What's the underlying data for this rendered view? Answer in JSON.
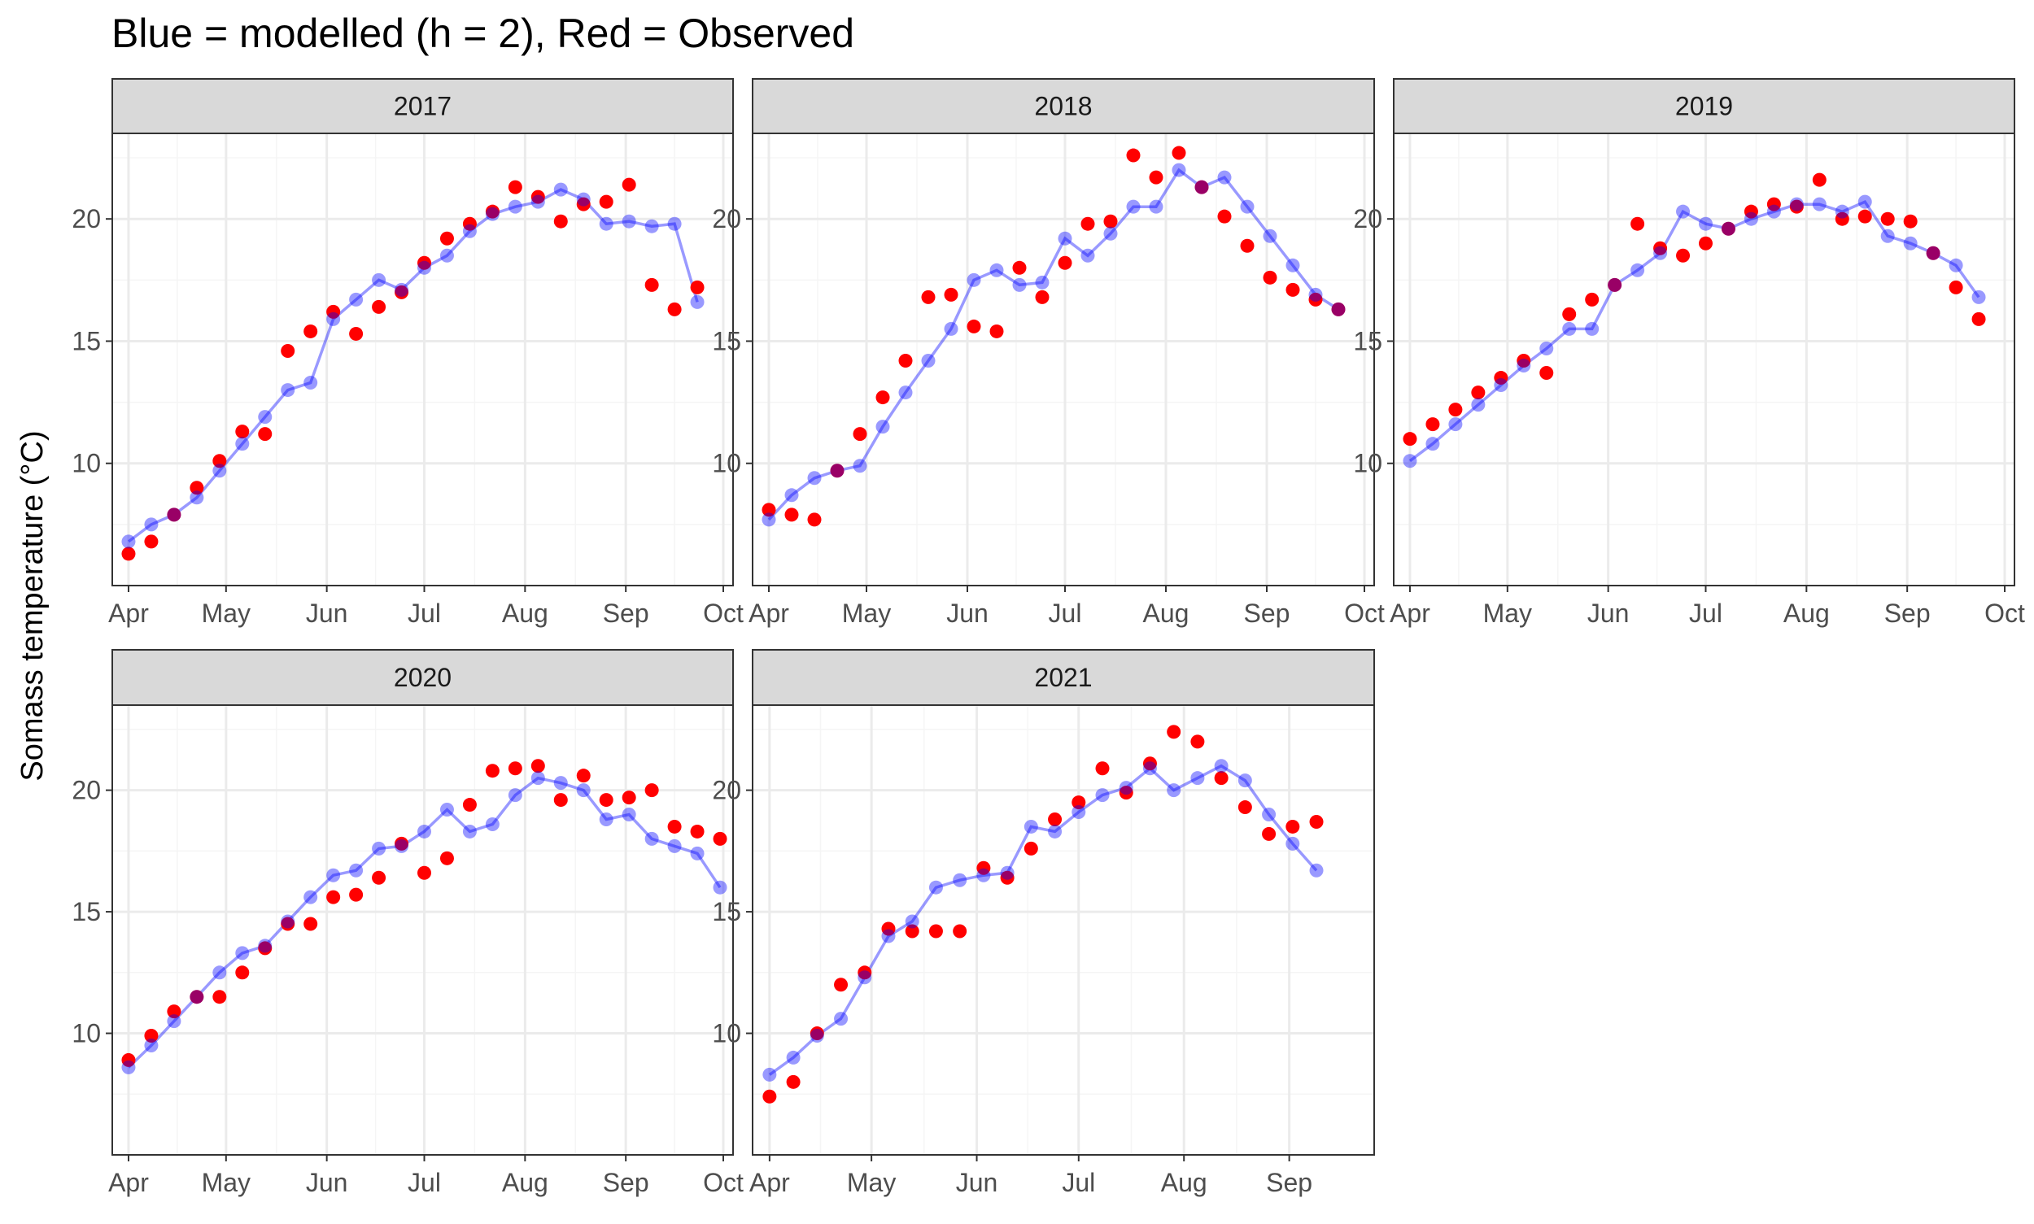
{
  "title": "Blue = modelled (h = 2), Red = Observed",
  "ylabel": "Somass temperature (°C)",
  "colors": {
    "modelled": "#0000ff",
    "observed": "#ff0000",
    "strip_bg": "#d9d9d9",
    "grid_major": "#ebebeb",
    "grid_minor": "#f5f5f5",
    "panel_border": "#333333"
  },
  "chart_data": {
    "type": "scatter",
    "facet_by": "year",
    "y_ticks": [
      10,
      15,
      20
    ],
    "ylim": [
      5,
      23.5
    ],
    "grid": true,
    "series": [
      {
        "name": "Blue = modelled (h = 2)",
        "style": "line+points",
        "color": "#0000ff"
      },
      {
        "name": "Red = Observed",
        "style": "points",
        "color": "#ff0000"
      }
    ],
    "panels": [
      {
        "year": "2017",
        "x_ticks": [
          "Apr",
          "May",
          "Jun",
          "Jul",
          "Aug",
          "Sep",
          "Oct"
        ],
        "x_tick_dates": [
          "2017-04-01",
          "2017-05-01",
          "2017-06-01",
          "2017-07-01",
          "2017-08-01",
          "2017-09-01",
          "2017-10-01"
        ],
        "xlim": [
          "2017-03-27",
          "2017-10-04"
        ],
        "dates": [
          "2017-04-01",
          "2017-04-08",
          "2017-04-15",
          "2017-04-22",
          "2017-04-29",
          "2017-05-06",
          "2017-05-13",
          "2017-05-20",
          "2017-05-27",
          "2017-06-03",
          "2017-06-10",
          "2017-06-17",
          "2017-06-24",
          "2017-07-01",
          "2017-07-08",
          "2017-07-15",
          "2017-07-22",
          "2017-07-29",
          "2017-08-05",
          "2017-08-12",
          "2017-08-19",
          "2017-08-26",
          "2017-09-02",
          "2017-09-09",
          "2017-09-16",
          "2017-09-23"
        ],
        "modelled": [
          6.8,
          7.5,
          7.9,
          8.6,
          9.7,
          10.8,
          11.9,
          13.0,
          13.3,
          15.9,
          16.7,
          17.5,
          17.1,
          18.0,
          18.5,
          19.5,
          20.2,
          20.5,
          20.7,
          21.2,
          20.8,
          19.8,
          19.9,
          19.7,
          19.8,
          16.6
        ],
        "observed": [
          6.3,
          6.8,
          7.9,
          9.0,
          10.1,
          11.3,
          11.2,
          14.6,
          15.4,
          16.2,
          15.3,
          16.4,
          17.0,
          18.2,
          19.2,
          19.8,
          20.3,
          21.3,
          20.9,
          19.9,
          20.6,
          20.7,
          21.4,
          17.3,
          16.3,
          17.2
        ]
      },
      {
        "year": "2018",
        "x_ticks": [
          "Apr",
          "May",
          "Jun",
          "Jul",
          "Aug",
          "Sep",
          "Oct"
        ],
        "x_tick_dates": [
          "2018-04-01",
          "2018-05-01",
          "2018-06-01",
          "2018-07-01",
          "2018-08-01",
          "2018-09-01",
          "2018-10-01"
        ],
        "xlim": [
          "2018-03-27",
          "2018-10-04"
        ],
        "dates": [
          "2018-04-01",
          "2018-04-08",
          "2018-04-15",
          "2018-04-22",
          "2018-04-29",
          "2018-05-06",
          "2018-05-13",
          "2018-05-20",
          "2018-05-27",
          "2018-06-03",
          "2018-06-10",
          "2018-06-17",
          "2018-06-24",
          "2018-07-01",
          "2018-07-08",
          "2018-07-15",
          "2018-07-22",
          "2018-07-29",
          "2018-08-05",
          "2018-08-12",
          "2018-08-19",
          "2018-08-26",
          "2018-09-02",
          "2018-09-09",
          "2018-09-16",
          "2018-09-23"
        ],
        "modelled": [
          7.7,
          8.7,
          9.4,
          9.7,
          9.9,
          11.5,
          12.9,
          14.2,
          15.5,
          17.5,
          17.9,
          17.3,
          17.4,
          19.2,
          18.5,
          19.4,
          20.5,
          20.5,
          22.0,
          21.3,
          21.7,
          20.5,
          19.3,
          18.1,
          16.9,
          16.3
        ],
        "observed": [
          8.1,
          7.9,
          7.7,
          9.7,
          11.2,
          12.7,
          14.2,
          16.8,
          16.9,
          15.6,
          15.4,
          18.0,
          16.8,
          18.2,
          19.8,
          19.9,
          22.6,
          21.7,
          22.7,
          21.3,
          20.1,
          18.9,
          17.6,
          17.1,
          16.7,
          16.3
        ]
      },
      {
        "year": "2019",
        "x_ticks": [
          "Apr",
          "May",
          "Jun",
          "Jul",
          "Aug",
          "Sep",
          "Oct"
        ],
        "x_tick_dates": [
          "2019-04-01",
          "2019-05-01",
          "2019-06-01",
          "2019-07-01",
          "2019-08-01",
          "2019-09-01",
          "2019-10-01"
        ],
        "xlim": [
          "2019-03-27",
          "2019-10-04"
        ],
        "dates": [
          "2019-04-01",
          "2019-04-08",
          "2019-04-15",
          "2019-04-22",
          "2019-04-29",
          "2019-05-06",
          "2019-05-13",
          "2019-05-20",
          "2019-05-27",
          "2019-06-03",
          "2019-06-10",
          "2019-06-17",
          "2019-06-24",
          "2019-07-01",
          "2019-07-08",
          "2019-07-15",
          "2019-07-22",
          "2019-07-29",
          "2019-08-05",
          "2019-08-12",
          "2019-08-19",
          "2019-08-26",
          "2019-09-02",
          "2019-09-09",
          "2019-09-16",
          "2019-09-23"
        ],
        "modelled": [
          10.1,
          10.8,
          11.6,
          12.4,
          13.2,
          14.0,
          14.7,
          15.5,
          15.5,
          17.3,
          17.9,
          18.6,
          20.3,
          19.8,
          19.6,
          20.0,
          20.3,
          20.6,
          20.6,
          20.3,
          20.7,
          19.3,
          19.0,
          18.6,
          18.1,
          16.8
        ],
        "observed": [
          11.0,
          11.6,
          12.2,
          12.9,
          13.5,
          14.2,
          13.7,
          16.1,
          16.7,
          17.3,
          19.8,
          18.8,
          18.5,
          19.0,
          19.6,
          20.3,
          20.6,
          20.5,
          21.6,
          20.0,
          20.1,
          20.0,
          19.9,
          18.6,
          17.2,
          15.9
        ]
      },
      {
        "year": "2020",
        "x_ticks": [
          "Apr",
          "May",
          "Jun",
          "Jul",
          "Aug",
          "Sep",
          "Oct"
        ],
        "x_tick_dates": [
          "2020-04-01",
          "2020-05-01",
          "2020-06-01",
          "2020-07-01",
          "2020-08-01",
          "2020-09-01",
          "2020-10-01"
        ],
        "xlim": [
          "2020-03-27",
          "2020-10-04"
        ],
        "dates": [
          "2020-04-01",
          "2020-04-08",
          "2020-04-15",
          "2020-04-22",
          "2020-04-29",
          "2020-05-06",
          "2020-05-13",
          "2020-05-20",
          "2020-05-27",
          "2020-06-03",
          "2020-06-10",
          "2020-06-17",
          "2020-06-24",
          "2020-07-01",
          "2020-07-08",
          "2020-07-15",
          "2020-07-22",
          "2020-07-29",
          "2020-08-05",
          "2020-08-12",
          "2020-08-19",
          "2020-08-26",
          "2020-09-02",
          "2020-09-09",
          "2020-09-16",
          "2020-09-23",
          "2020-09-30"
        ],
        "modelled": [
          8.6,
          9.5,
          10.5,
          11.5,
          12.5,
          13.3,
          13.6,
          14.6,
          15.6,
          16.5,
          16.7,
          17.6,
          17.7,
          18.3,
          19.2,
          18.3,
          18.6,
          19.8,
          20.5,
          20.3,
          20.0,
          18.8,
          19.0,
          18.0,
          17.7,
          17.4,
          16.0
        ],
        "observed": [
          8.9,
          9.9,
          10.9,
          11.5,
          11.5,
          12.5,
          13.5,
          14.5,
          14.5,
          15.6,
          15.7,
          16.4,
          17.8,
          16.6,
          17.2,
          19.4,
          20.8,
          20.9,
          21.0,
          19.6,
          20.6,
          19.6,
          19.7,
          20.0,
          18.5,
          18.3,
          18.0
        ]
      },
      {
        "year": "2021",
        "x_ticks": [
          "Apr",
          "May",
          "Jun",
          "Jul",
          "Aug",
          "Sep"
        ],
        "x_tick_dates": [
          "2021-04-01",
          "2021-05-01",
          "2021-06-01",
          "2021-07-01",
          "2021-08-01",
          "2021-09-01"
        ],
        "xlim": [
          "2021-03-27",
          "2021-09-26"
        ],
        "dates": [
          "2021-04-01",
          "2021-04-08",
          "2021-04-15",
          "2021-04-22",
          "2021-04-29",
          "2021-05-06",
          "2021-05-13",
          "2021-05-20",
          "2021-05-27",
          "2021-06-03",
          "2021-06-10",
          "2021-06-17",
          "2021-06-24",
          "2021-07-01",
          "2021-07-08",
          "2021-07-15",
          "2021-07-22",
          "2021-07-29",
          "2021-08-05",
          "2021-08-12",
          "2021-08-19",
          "2021-08-26",
          "2021-09-02",
          "2021-09-09"
        ],
        "modelled": [
          8.3,
          9.0,
          9.9,
          10.6,
          12.3,
          14.0,
          14.6,
          16.0,
          16.3,
          16.5,
          16.6,
          18.5,
          18.3,
          19.1,
          19.8,
          20.1,
          20.9,
          20.0,
          20.5,
          21.0,
          20.4,
          19.0,
          17.8,
          16.7
        ],
        "observed": [
          7.4,
          8.0,
          10.0,
          12.0,
          12.5,
          14.3,
          14.2,
          14.2,
          14.2,
          16.8,
          16.4,
          17.6,
          18.8,
          19.5,
          20.9,
          19.9,
          21.1,
          22.4,
          22.0,
          20.5,
          19.3,
          18.2,
          18.5,
          18.7
        ]
      }
    ]
  }
}
